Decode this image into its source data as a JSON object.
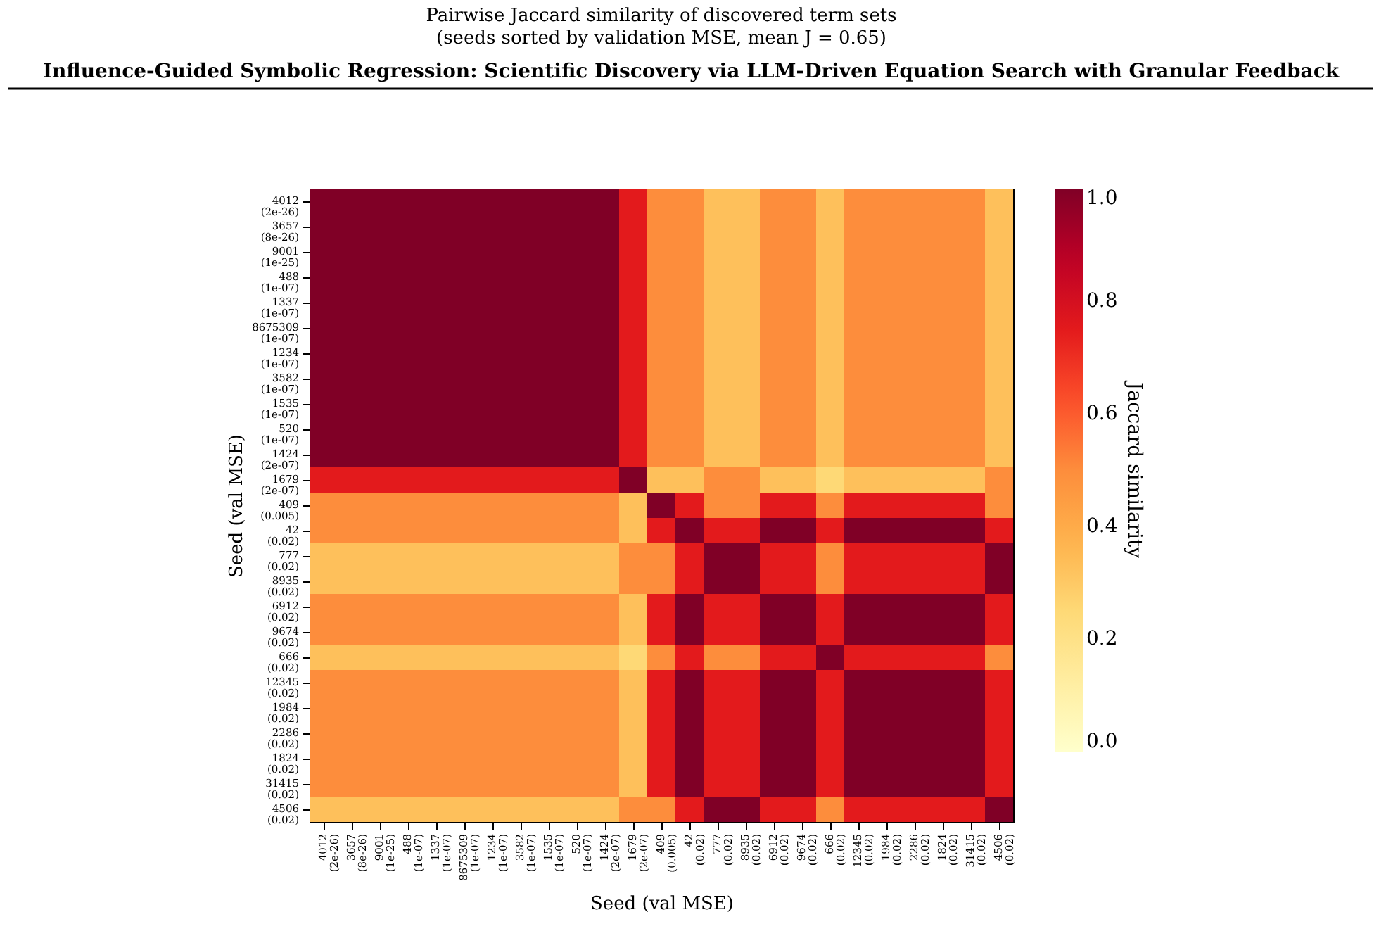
{
  "chart_data": {
    "type": "heatmap",
    "title": "Pairwise Jaccard similarity of discovered term sets",
    "subtitle": "(seeds sorted by validation MSE, mean J = 0.65)",
    "xlabel": "Seed (val MSE)",
    "ylabel": "Seed (val MSE)",
    "clabel": "Jaccard similarity",
    "annotations": [
      "Influence-Guided Symbolic Regression: Scientific Discovery via LLM-Driven Equation Search with Granular Feedback"
    ],
    "categories": [
      "4012 (2e-26)",
      "3657 (8e-26)",
      "9001 (1e-25)",
      "488 (1e-07)",
      "1337 (1e-07)",
      "8675309 (1e-07)",
      "1234 (1e-07)",
      "3582 (1e-07)",
      "1535 (1e-07)",
      "520 (1e-07)",
      "1424 (2e-07)",
      "1679 (2e-07)",
      "409 (0.005)",
      "42 (0.02)",
      "777 (0.02)",
      "8935 (0.02)",
      "6912 (0.02)",
      "9674 (0.02)",
      "666 (0.02)",
      "12345 (0.02)",
      "1984 (0.02)",
      "2286 (0.02)",
      "1824 (0.02)",
      "31415 (0.02)",
      "4506 (0.02)"
    ],
    "y_categories": [
      "4012 (2e-26)",
      "3657 (8e-26)",
      "9001 (1e-25)",
      "488 (1e-07)",
      "1337 (1e-07)",
      "8675309 (1e-07)",
      "1234 (1e-07)",
      "3582 (1e-07)",
      "1535 (1e-07)",
      "520 (1e-07)",
      "1424 (2e-07)",
      "1679 (2e-07)",
      "409 (0.005)",
      "42 (0.02)",
      "777 (0.02)",
      "8935 (0.02)",
      "6912 (0.02)",
      "9674 (0.02)",
      "666 (0.02)",
      "12345 (0.02)",
      "1984 (0.02)",
      "2286 (0.02)",
      "1824 (0.02)",
      "31415 (0.02)",
      "4506 (0.02)"
    ],
    "cells": [
      [
        1,
        1,
        1,
        1,
        1,
        1,
        1,
        1,
        1,
        1,
        1,
        0.75,
        0.5,
        0.5,
        0.33,
        0.33,
        0.5,
        0.5,
        0.33,
        0.5,
        0.5,
        0.5,
        0.5,
        0.5,
        0.33
      ],
      [
        1,
        1,
        1,
        1,
        1,
        1,
        1,
        1,
        1,
        1,
        1,
        0.75,
        0.5,
        0.5,
        0.33,
        0.33,
        0.5,
        0.5,
        0.33,
        0.5,
        0.5,
        0.5,
        0.5,
        0.5,
        0.33
      ],
      [
        1,
        1,
        1,
        1,
        1,
        1,
        1,
        1,
        1,
        1,
        1,
        0.75,
        0.5,
        0.5,
        0.33,
        0.33,
        0.5,
        0.5,
        0.33,
        0.5,
        0.5,
        0.5,
        0.5,
        0.5,
        0.33
      ],
      [
        1,
        1,
        1,
        1,
        1,
        1,
        1,
        1,
        1,
        1,
        1,
        0.75,
        0.5,
        0.5,
        0.33,
        0.33,
        0.5,
        0.5,
        0.33,
        0.5,
        0.5,
        0.5,
        0.5,
        0.5,
        0.33
      ],
      [
        1,
        1,
        1,
        1,
        1,
        1,
        1,
        1,
        1,
        1,
        1,
        0.75,
        0.5,
        0.5,
        0.33,
        0.33,
        0.5,
        0.5,
        0.33,
        0.5,
        0.5,
        0.5,
        0.5,
        0.5,
        0.33
      ],
      [
        1,
        1,
        1,
        1,
        1,
        1,
        1,
        1,
        1,
        1,
        1,
        0.75,
        0.5,
        0.5,
        0.33,
        0.33,
        0.5,
        0.5,
        0.33,
        0.5,
        0.5,
        0.5,
        0.5,
        0.5,
        0.33
      ],
      [
        1,
        1,
        1,
        1,
        1,
        1,
        1,
        1,
        1,
        1,
        1,
        0.75,
        0.5,
        0.5,
        0.33,
        0.33,
        0.5,
        0.5,
        0.33,
        0.5,
        0.5,
        0.5,
        0.5,
        0.5,
        0.33
      ],
      [
        1,
        1,
        1,
        1,
        1,
        1,
        1,
        1,
        1,
        1,
        1,
        0.75,
        0.5,
        0.5,
        0.33,
        0.33,
        0.5,
        0.5,
        0.33,
        0.5,
        0.5,
        0.5,
        0.5,
        0.5,
        0.33
      ],
      [
        1,
        1,
        1,
        1,
        1,
        1,
        1,
        1,
        1,
        1,
        1,
        0.75,
        0.5,
        0.5,
        0.33,
        0.33,
        0.5,
        0.5,
        0.33,
        0.5,
        0.5,
        0.5,
        0.5,
        0.5,
        0.33
      ],
      [
        1,
        1,
        1,
        1,
        1,
        1,
        1,
        1,
        1,
        1,
        1,
        0.75,
        0.5,
        0.5,
        0.33,
        0.33,
        0.5,
        0.5,
        0.33,
        0.5,
        0.5,
        0.5,
        0.5,
        0.5,
        0.33
      ],
      [
        1,
        1,
        1,
        1,
        1,
        1,
        1,
        1,
        1,
        1,
        1,
        0.75,
        0.5,
        0.5,
        0.33,
        0.33,
        0.5,
        0.5,
        0.33,
        0.5,
        0.5,
        0.5,
        0.5,
        0.5,
        0.33
      ],
      [
        0.75,
        0.75,
        0.75,
        0.75,
        0.75,
        0.75,
        0.75,
        0.75,
        0.75,
        0.75,
        0.75,
        1,
        0.33,
        0.33,
        0.5,
        0.5,
        0.33,
        0.33,
        0.25,
        0.33,
        0.33,
        0.33,
        0.33,
        0.33,
        0.5
      ],
      [
        0.5,
        0.5,
        0.5,
        0.5,
        0.5,
        0.5,
        0.5,
        0.5,
        0.5,
        0.5,
        0.5,
        0.33,
        1,
        0.75,
        0.5,
        0.5,
        0.75,
        0.75,
        0.5,
        0.75,
        0.75,
        0.75,
        0.75,
        0.75,
        0.5
      ],
      [
        0.5,
        0.5,
        0.5,
        0.5,
        0.5,
        0.5,
        0.5,
        0.5,
        0.5,
        0.5,
        0.5,
        0.33,
        0.75,
        1,
        0.75,
        0.75,
        1,
        1,
        0.75,
        1,
        1,
        1,
        1,
        1,
        0.75
      ],
      [
        0.33,
        0.33,
        0.33,
        0.33,
        0.33,
        0.33,
        0.33,
        0.33,
        0.33,
        0.33,
        0.33,
        0.5,
        0.5,
        0.75,
        1,
        1,
        0.75,
        0.75,
        0.5,
        0.75,
        0.75,
        0.75,
        0.75,
        0.75,
        1
      ],
      [
        0.33,
        0.33,
        0.33,
        0.33,
        0.33,
        0.33,
        0.33,
        0.33,
        0.33,
        0.33,
        0.33,
        0.5,
        0.5,
        0.75,
        1,
        1,
        0.75,
        0.75,
        0.5,
        0.75,
        0.75,
        0.75,
        0.75,
        0.75,
        1
      ],
      [
        0.5,
        0.5,
        0.5,
        0.5,
        0.5,
        0.5,
        0.5,
        0.5,
        0.5,
        0.5,
        0.5,
        0.33,
        0.75,
        1,
        0.75,
        0.75,
        1,
        1,
        0.75,
        1,
        1,
        1,
        1,
        1,
        0.75
      ],
      [
        0.5,
        0.5,
        0.5,
        0.5,
        0.5,
        0.5,
        0.5,
        0.5,
        0.5,
        0.5,
        0.5,
        0.33,
        0.75,
        1,
        0.75,
        0.75,
        1,
        1,
        0.75,
        1,
        1,
        1,
        1,
        1,
        0.75
      ],
      [
        0.33,
        0.33,
        0.33,
        0.33,
        0.33,
        0.33,
        0.33,
        0.33,
        0.33,
        0.33,
        0.33,
        0.25,
        0.5,
        0.75,
        0.5,
        0.5,
        0.75,
        0.75,
        1,
        0.75,
        0.75,
        0.75,
        0.75,
        0.75,
        0.5
      ],
      [
        0.5,
        0.5,
        0.5,
        0.5,
        0.5,
        0.5,
        0.5,
        0.5,
        0.5,
        0.5,
        0.5,
        0.33,
        0.75,
        1,
        0.75,
        0.75,
        1,
        1,
        0.75,
        1,
        1,
        1,
        1,
        1,
        0.75
      ],
      [
        0.5,
        0.5,
        0.5,
        0.5,
        0.5,
        0.5,
        0.5,
        0.5,
        0.5,
        0.5,
        0.5,
        0.33,
        0.75,
        1,
        0.75,
        0.75,
        1,
        1,
        0.75,
        1,
        1,
        1,
        1,
        1,
        0.75
      ],
      [
        0.5,
        0.5,
        0.5,
        0.5,
        0.5,
        0.5,
        0.5,
        0.5,
        0.5,
        0.5,
        0.5,
        0.33,
        0.75,
        1,
        0.75,
        0.75,
        1,
        1,
        0.75,
        1,
        1,
        1,
        1,
        1,
        0.75
      ],
      [
        0.5,
        0.5,
        0.5,
        0.5,
        0.5,
        0.5,
        0.5,
        0.5,
        0.5,
        0.5,
        0.5,
        0.33,
        0.75,
        1,
        0.75,
        0.75,
        1,
        1,
        0.75,
        1,
        1,
        1,
        1,
        1,
        0.75
      ],
      [
        0.5,
        0.5,
        0.5,
        0.5,
        0.5,
        0.5,
        0.5,
        0.5,
        0.5,
        0.5,
        0.5,
        0.33,
        0.75,
        1,
        0.75,
        0.75,
        1,
        1,
        0.75,
        1,
        1,
        1,
        1,
        1,
        0.75
      ],
      [
        0.33,
        0.33,
        0.33,
        0.33,
        0.33,
        0.33,
        0.33,
        0.33,
        0.33,
        0.33,
        0.33,
        0.5,
        0.5,
        0.75,
        1,
        1,
        0.75,
        0.75,
        0.5,
        0.75,
        0.75,
        0.75,
        0.75,
        0.75,
        1
      ]
    ],
    "clim": [
      0,
      1
    ],
    "cticks": [
      {
        "value": 0,
        "label": "0.0"
      },
      0.2,
      0.4,
      0.6,
      0.8,
      {
        "value": 1,
        "label": "1.0"
      }
    ]
  }
}
